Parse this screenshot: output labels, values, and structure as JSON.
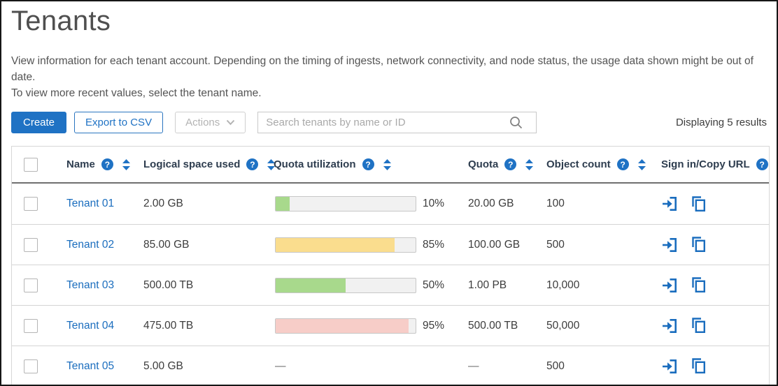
{
  "page": {
    "title": "Tenants",
    "description_line1": "View information for each tenant account. Depending on the timing of ingests, network connectivity, and node status, the usage data shown might be out of date.",
    "description_line2": "To view more recent values, select the tenant name.",
    "results_summary": "Displaying 5 results"
  },
  "toolbar": {
    "create_label": "Create",
    "export_label": "Export to CSV",
    "actions_label": "Actions",
    "search_placeholder": "Search tenants by name or ID"
  },
  "icons": {
    "help_glyph": "?",
    "search": "magnifier-icon",
    "sort": "up-down-arrows-icon",
    "sign_in": "arrow-into-door-icon",
    "copy": "overlapping-pages-icon",
    "chevron_down": "chevron-down-icon"
  },
  "colors": {
    "accent_blue": "#1f72c4",
    "link_blue": "#1a6dbe",
    "bar_green": "#a8d98c",
    "bar_yellow": "#fadd8e",
    "bar_pink": "#f7cdc8",
    "bar_track": "#f1f1f1"
  },
  "table": {
    "columns": [
      {
        "label": "Name",
        "help": true,
        "sortable": true
      },
      {
        "label": "Logical space used",
        "help": true,
        "sortable": true
      },
      {
        "label": "Quota utilization",
        "help": true,
        "sortable": true
      },
      {
        "label": "Quota",
        "help": true,
        "sortable": true
      },
      {
        "label": "Object count",
        "help": true,
        "sortable": true
      },
      {
        "label": "Sign in/Copy URL",
        "help": true,
        "sortable": false
      }
    ],
    "rows": [
      {
        "name": "Tenant 01",
        "logical_space_used": "2.00 GB",
        "quota_utilization_percent": 10,
        "quota_utilization_label": "10%",
        "bar_color": "#a8d98c",
        "quota": "20.00 GB",
        "object_count": "100"
      },
      {
        "name": "Tenant 02",
        "logical_space_used": "85.00 GB",
        "quota_utilization_percent": 85,
        "quota_utilization_label": "85%",
        "bar_color": "#fadd8e",
        "quota": "100.00 GB",
        "object_count": "500"
      },
      {
        "name": "Tenant 03",
        "logical_space_used": "500.00 TB",
        "quota_utilization_percent": 50,
        "quota_utilization_label": "50%",
        "bar_color": "#a8d98c",
        "quota": "1.00 PB",
        "object_count": "10,000"
      },
      {
        "name": "Tenant 04",
        "logical_space_used": "475.00 TB",
        "quota_utilization_percent": 95,
        "quota_utilization_label": "95%",
        "bar_color": "#f7cdc8",
        "quota": "500.00 TB",
        "object_count": "50,000"
      },
      {
        "name": "Tenant 05",
        "logical_space_used": "5.00 GB",
        "quota_utilization_percent": null,
        "quota_utilization_label": "—",
        "bar_color": null,
        "quota": "—",
        "object_count": "500"
      }
    ]
  }
}
